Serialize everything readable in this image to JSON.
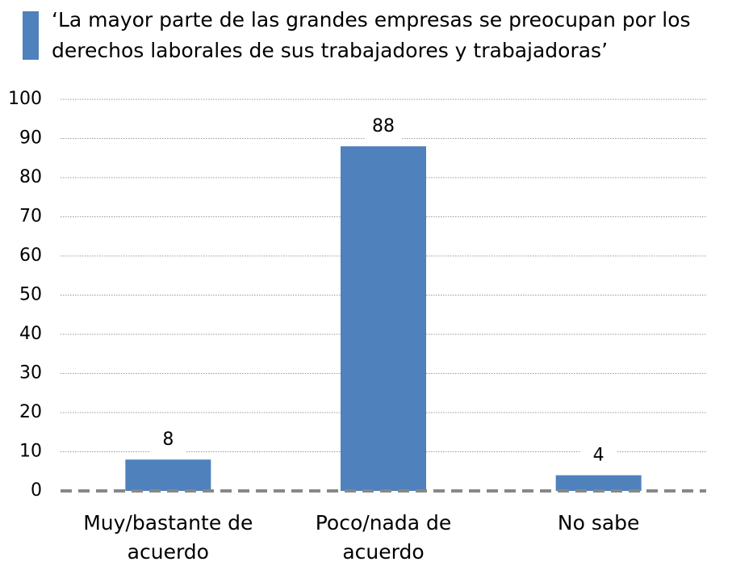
{
  "chart_data": {
    "type": "bar",
    "categories": [
      "Muy/bastante de acuerdo",
      "Poco/nada de acuerdo",
      "No sabe"
    ],
    "series": [
      {
        "name": "‘La mayor parte de las grandes empresas se preocupan por los derechos laborales de sus trabajadores y trabajadoras’",
        "color": "#4f81bd",
        "values": [
          8,
          88,
          4
        ]
      }
    ],
    "ylim": [
      0,
      100
    ],
    "yticks": [
      0,
      10,
      20,
      30,
      40,
      50,
      60,
      70,
      80,
      90,
      100
    ],
    "grid": true,
    "legend": "top"
  }
}
